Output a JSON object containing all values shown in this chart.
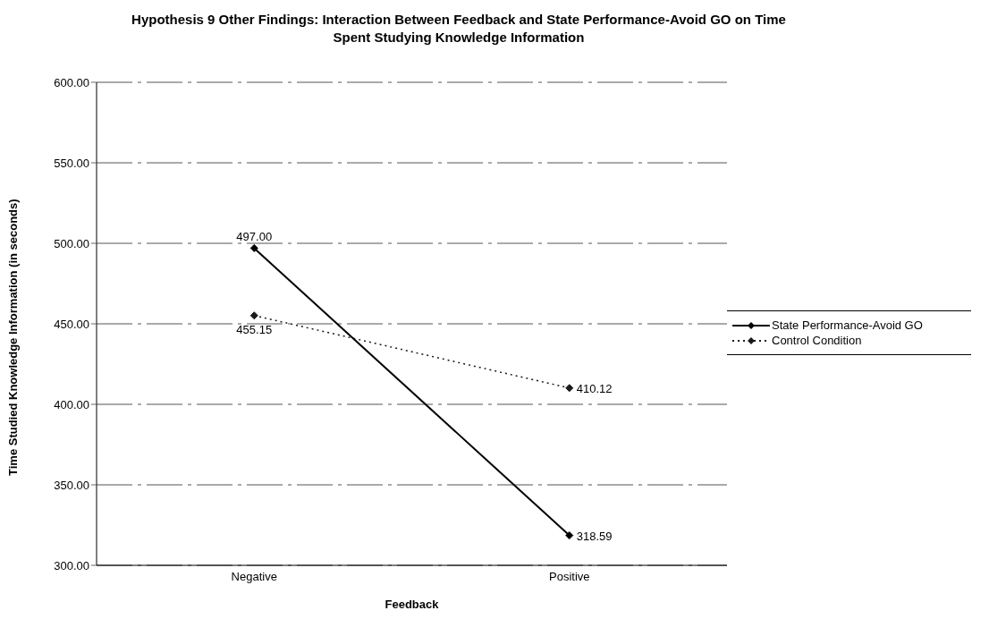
{
  "chart_data": {
    "type": "line",
    "title": "Hypothesis 9 Other Findings: Interaction Between Feedback and State Performance-Avoid GO on Time Spent Studying Knowledge Information",
    "xlabel": "Feedback",
    "ylabel": "Time Studied Knowledge Information (in seconds)",
    "categories": [
      "Negative",
      "Positive"
    ],
    "series": [
      {
        "name": "State Performance-Avoid GO",
        "color": "#000000",
        "values": [
          497.0,
          318.59
        ],
        "value_labels": [
          "497.00",
          "318.59"
        ],
        "line_style": "solid"
      },
      {
        "name": "Control Condition",
        "color": "#1a1a1a",
        "values": [
          455.15,
          410.12
        ],
        "value_labels": [
          "455.15",
          "410.12"
        ],
        "line_style": "dotted"
      }
    ],
    "ylim": [
      300,
      600
    ],
    "yticks": [
      {
        "value": 300,
        "label": "300.00"
      },
      {
        "value": 350,
        "label": "350.00"
      },
      {
        "value": 400,
        "label": "400.00"
      },
      {
        "value": 450,
        "label": "450.00"
      },
      {
        "value": 500,
        "label": "500.00"
      },
      {
        "value": 550,
        "label": "550.00"
      },
      {
        "value": 600,
        "label": "600.00"
      }
    ],
    "grid": "y",
    "legend": "right",
    "marker": "diamond"
  }
}
